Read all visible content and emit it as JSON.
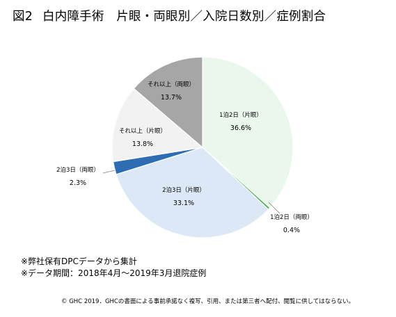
{
  "title": {
    "figure": "図2",
    "text": "白内障手術　片眼・両眼別／入院日数別／症例割合"
  },
  "chart_data": {
    "type": "pie",
    "categories": [
      "1泊2日（片眼）",
      "1泊2日（両眼）",
      "2泊3日（片眼）",
      "2泊3日（両眼）",
      "それ以上（片眼）",
      "それ以上（両眼）"
    ],
    "values": [
      36.6,
      0.4,
      33.1,
      2.3,
      13.8,
      13.7
    ],
    "value_labels": [
      "36.6%",
      "0.4%",
      "33.1%",
      "2.3%",
      "13.8%",
      "13.7%"
    ],
    "colors": [
      "#e9f7ec",
      "#4daf4f",
      "#dce8f6",
      "#2e6db4",
      "#f2f2f2",
      "#a6a6a6"
    ],
    "start": "top, clockwise"
  },
  "notes": [
    "※弊社保有DPCデータから集計",
    "※データ期間：2018年4月～2019年3月退院症例"
  ],
  "copyright": "© GHC 2019．GHCの書面による事前承諾なく複写、引用、または第三者へ配付、閲覧に供してはならない。"
}
